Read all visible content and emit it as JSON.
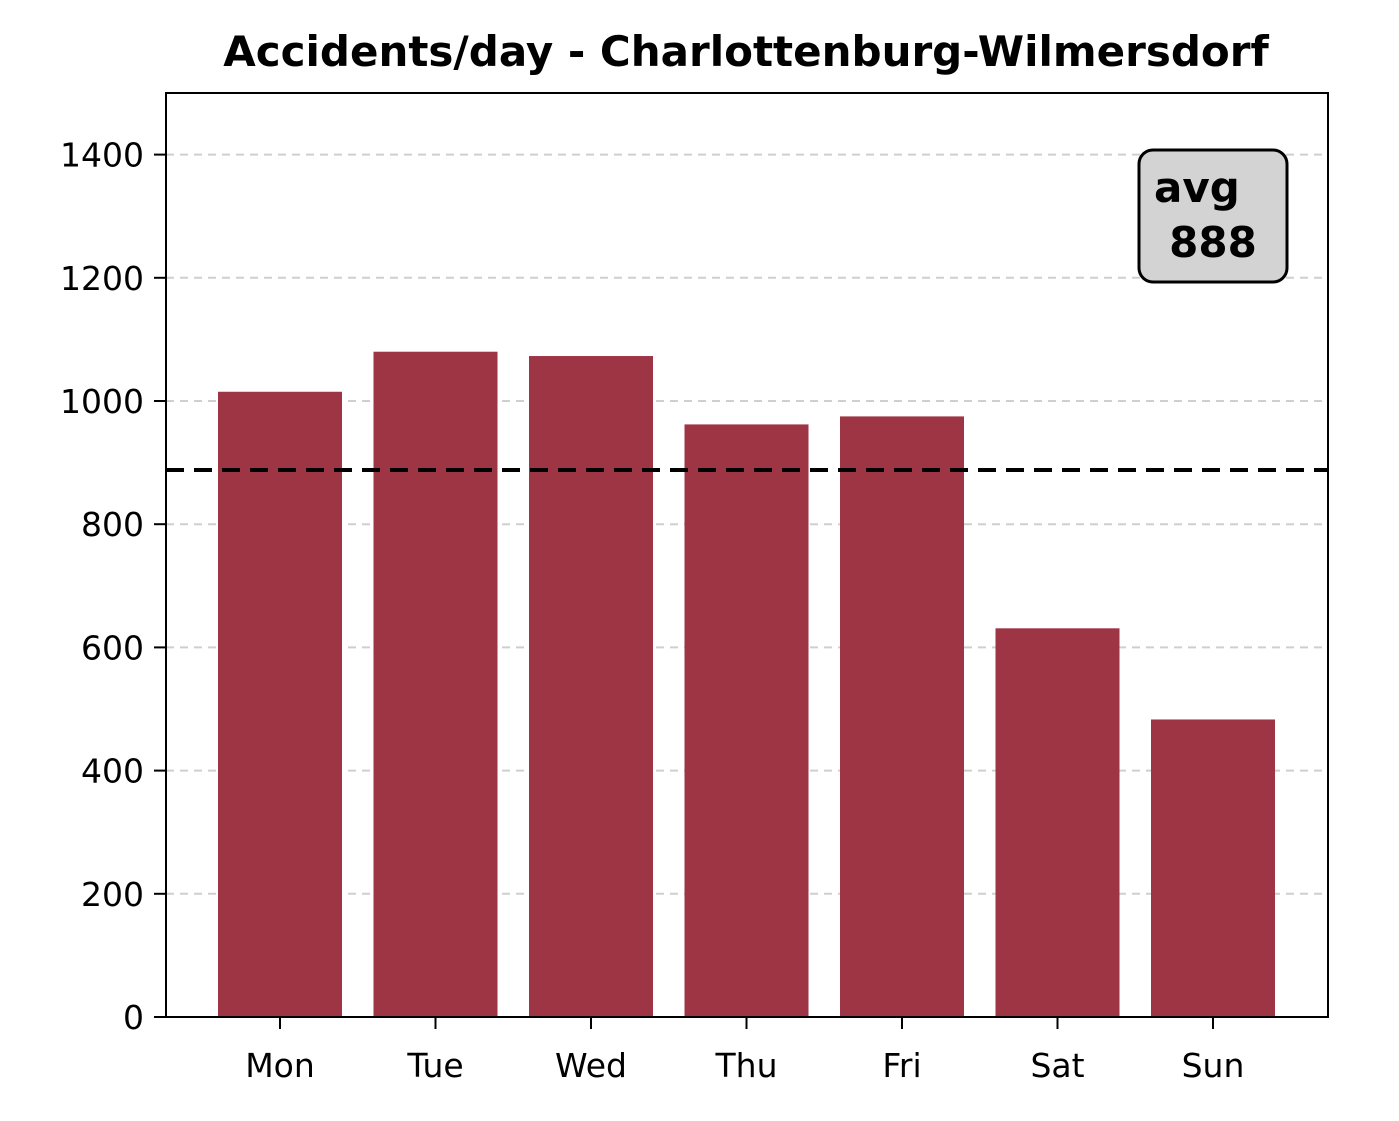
{
  "chart_data": {
    "type": "bar",
    "title": "Accidents/day - Charlottenburg-Wilmersdorf",
    "xlabel": "",
    "ylabel": "",
    "categories": [
      "Mon",
      "Tue",
      "Wed",
      "Thu",
      "Fri",
      "Sat",
      "Sun"
    ],
    "values": [
      1015,
      1080,
      1073,
      962,
      975,
      631,
      483
    ],
    "ylim": [
      0,
      1500
    ],
    "yticks": [
      0,
      200,
      400,
      600,
      800,
      1000,
      1200,
      1400
    ],
    "ytick_labels": [
      "0",
      "200",
      "400",
      "600",
      "800",
      "1000",
      "1200",
      "1400"
    ],
    "grid": "y-dashed",
    "bar_color": "#9e3545",
    "average": {
      "value": 888,
      "label_line1": "avg",
      "label_line2": "888",
      "line_style": "dashed",
      "line_color": "#000000",
      "box_color": "#d3d3d3",
      "placement": "top-right"
    }
  }
}
